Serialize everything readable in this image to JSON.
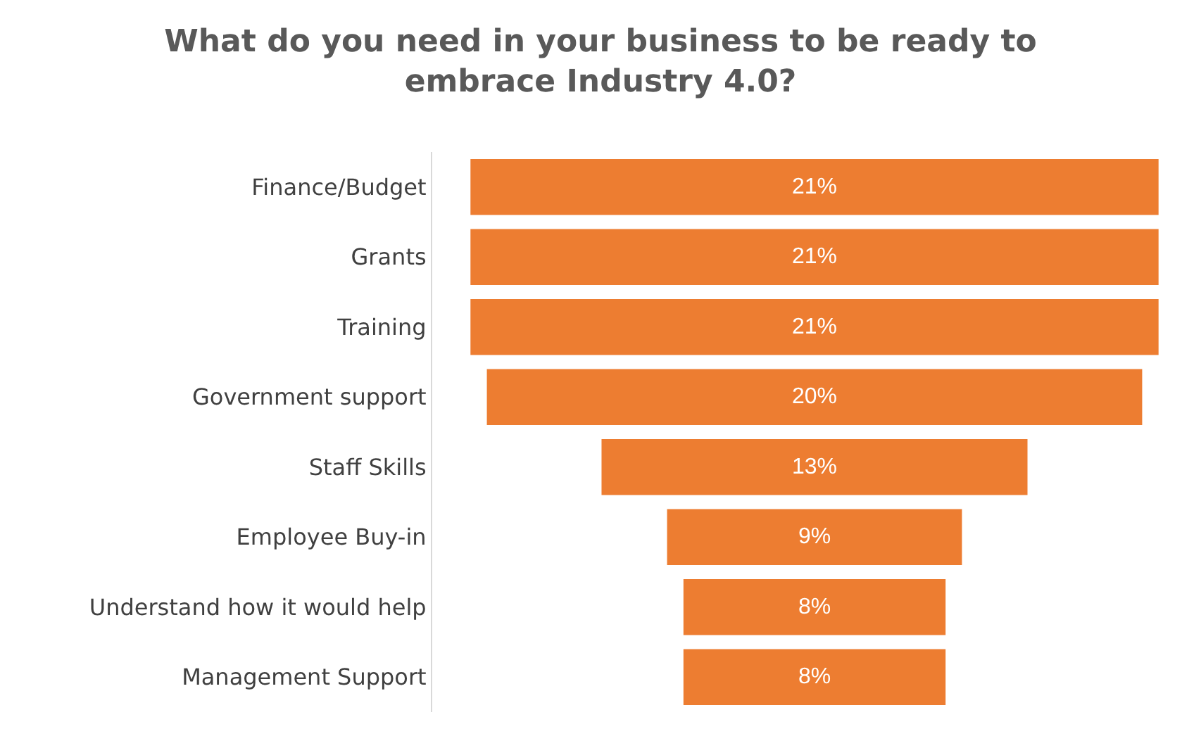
{
  "chart_data": {
    "type": "other",
    "title": "What do you need in your business to be ready to embrace Industry 4.0?",
    "categories": [
      "Finance/Budget",
      "Grants",
      "Training",
      "Government support",
      "Staff Skills",
      "Employee Buy-in",
      "Understand how it would help",
      "Management Support"
    ],
    "values": [
      21,
      21,
      21,
      20,
      13,
      9,
      8,
      8
    ],
    "value_labels": [
      "21%",
      "21%",
      "21%",
      "20%",
      "13%",
      "9%",
      "8%",
      "8%"
    ],
    "color": "#ed7d31"
  }
}
